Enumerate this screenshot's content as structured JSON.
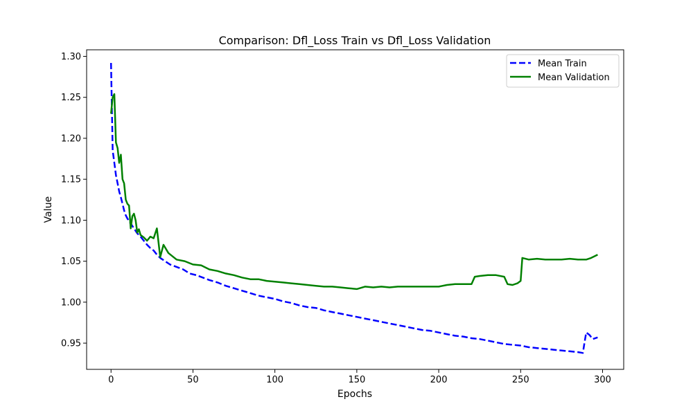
{
  "chart_data": {
    "type": "line",
    "title": "Comparison: Dfl_Loss Train vs Dfl_Loss Validation",
    "xlabel": "Epochs",
    "ylabel": "Value",
    "xlim": [
      -14.9,
      312.9
    ],
    "ylim": [
      0.918,
      1.308
    ],
    "xticks": [
      0,
      50,
      100,
      150,
      200,
      250,
      300
    ],
    "yticks": [
      0.95,
      1.0,
      1.05,
      1.1,
      1.15,
      1.2,
      1.25,
      1.3
    ],
    "xtick_labels": [
      "0",
      "50",
      "100",
      "150",
      "200",
      "250",
      "300"
    ],
    "ytick_labels": [
      "0.95",
      "1.00",
      "1.05",
      "1.10",
      "1.15",
      "1.20",
      "1.25",
      "1.30"
    ],
    "grid": false,
    "legend_position": "top-right",
    "series": [
      {
        "name": "Mean Train",
        "color": "#0000ff",
        "style": "dashed",
        "points": [
          [
            0,
            1.292
          ],
          [
            1,
            1.185
          ],
          [
            2,
            1.17
          ],
          [
            3,
            1.155
          ],
          [
            4,
            1.145
          ],
          [
            5,
            1.135
          ],
          [
            6,
            1.128
          ],
          [
            7,
            1.12
          ],
          [
            8,
            1.112
          ],
          [
            9,
            1.106
          ],
          [
            10,
            1.102
          ],
          [
            12,
            1.096
          ],
          [
            14,
            1.09
          ],
          [
            16,
            1.084
          ],
          [
            18,
            1.08
          ],
          [
            20,
            1.075
          ],
          [
            22,
            1.07
          ],
          [
            24,
            1.066
          ],
          [
            26,
            1.063
          ],
          [
            28,
            1.058
          ],
          [
            30,
            1.054
          ],
          [
            33,
            1.05
          ],
          [
            36,
            1.046
          ],
          [
            40,
            1.043
          ],
          [
            44,
            1.04
          ],
          [
            48,
            1.035
          ],
          [
            52,
            1.033
          ],
          [
            56,
            1.03
          ],
          [
            60,
            1.027
          ],
          [
            65,
            1.024
          ],
          [
            70,
            1.02
          ],
          [
            75,
            1.017
          ],
          [
            80,
            1.014
          ],
          [
            85,
            1.011
          ],
          [
            90,
            1.008
          ],
          [
            95,
            1.006
          ],
          [
            100,
            1.004
          ],
          [
            105,
            1.001
          ],
          [
            110,
            0.999
          ],
          [
            115,
            0.996
          ],
          [
            120,
            0.994
          ],
          [
            125,
            0.993
          ],
          [
            130,
            0.99
          ],
          [
            135,
            0.988
          ],
          [
            140,
            0.986
          ],
          [
            145,
            0.984
          ],
          [
            150,
            0.982
          ],
          [
            155,
            0.98
          ],
          [
            160,
            0.978
          ],
          [
            165,
            0.976
          ],
          [
            170,
            0.974
          ],
          [
            175,
            0.972
          ],
          [
            180,
            0.97
          ],
          [
            185,
            0.968
          ],
          [
            190,
            0.966
          ],
          [
            195,
            0.965
          ],
          [
            200,
            0.963
          ],
          [
            205,
            0.961
          ],
          [
            210,
            0.959
          ],
          [
            215,
            0.958
          ],
          [
            220,
            0.956
          ],
          [
            225,
            0.955
          ],
          [
            230,
            0.953
          ],
          [
            235,
            0.951
          ],
          [
            240,
            0.949
          ],
          [
            245,
            0.948
          ],
          [
            250,
            0.947
          ],
          [
            255,
            0.945
          ],
          [
            260,
            0.944
          ],
          [
            265,
            0.943
          ],
          [
            270,
            0.942
          ],
          [
            275,
            0.941
          ],
          [
            280,
            0.94
          ],
          [
            285,
            0.939
          ],
          [
            288,
            0.938
          ],
          [
            289,
            0.951
          ],
          [
            290,
            0.963
          ],
          [
            292,
            0.96
          ],
          [
            294,
            0.955
          ],
          [
            297,
            0.957
          ]
        ]
      },
      {
        "name": "Mean Validation",
        "color": "#008000",
        "style": "solid",
        "points": [
          [
            0,
            1.23
          ],
          [
            1,
            1.25
          ],
          [
            2,
            1.254
          ],
          [
            3,
            1.195
          ],
          [
            4,
            1.188
          ],
          [
            5,
            1.17
          ],
          [
            6,
            1.18
          ],
          [
            7,
            1.15
          ],
          [
            8,
            1.145
          ],
          [
            9,
            1.125
          ],
          [
            10,
            1.12
          ],
          [
            11,
            1.118
          ],
          [
            12,
            1.09
          ],
          [
            13,
            1.105
          ],
          [
            14,
            1.108
          ],
          [
            15,
            1.1
          ],
          [
            16,
            1.085
          ],
          [
            17,
            1.089
          ],
          [
            18,
            1.082
          ],
          [
            20,
            1.079
          ],
          [
            22,
            1.075
          ],
          [
            24,
            1.08
          ],
          [
            26,
            1.078
          ],
          [
            28,
            1.09
          ],
          [
            30,
            1.055
          ],
          [
            32,
            1.07
          ],
          [
            35,
            1.06
          ],
          [
            40,
            1.052
          ],
          [
            45,
            1.05
          ],
          [
            50,
            1.046
          ],
          [
            55,
            1.045
          ],
          [
            60,
            1.04
          ],
          [
            65,
            1.038
          ],
          [
            70,
            1.035
          ],
          [
            75,
            1.033
          ],
          [
            80,
            1.03
          ],
          [
            85,
            1.028
          ],
          [
            90,
            1.028
          ],
          [
            95,
            1.026
          ],
          [
            100,
            1.025
          ],
          [
            105,
            1.024
          ],
          [
            110,
            1.023
          ],
          [
            115,
            1.022
          ],
          [
            120,
            1.021
          ],
          [
            125,
            1.02
          ],
          [
            130,
            1.019
          ],
          [
            135,
            1.019
          ],
          [
            140,
            1.018
          ],
          [
            145,
            1.017
          ],
          [
            150,
            1.016
          ],
          [
            155,
            1.019
          ],
          [
            160,
            1.018
          ],
          [
            165,
            1.019
          ],
          [
            170,
            1.018
          ],
          [
            175,
            1.019
          ],
          [
            180,
            1.019
          ],
          [
            185,
            1.019
          ],
          [
            190,
            1.019
          ],
          [
            195,
            1.019
          ],
          [
            200,
            1.019
          ],
          [
            205,
            1.021
          ],
          [
            210,
            1.022
          ],
          [
            215,
            1.022
          ],
          [
            220,
            1.022
          ],
          [
            222,
            1.031
          ],
          [
            225,
            1.032
          ],
          [
            230,
            1.033
          ],
          [
            235,
            1.033
          ],
          [
            240,
            1.031
          ],
          [
            242,
            1.022
          ],
          [
            245,
            1.021
          ],
          [
            248,
            1.023
          ],
          [
            250,
            1.026
          ],
          [
            251,
            1.054
          ],
          [
            255,
            1.052
          ],
          [
            260,
            1.053
          ],
          [
            265,
            1.052
          ],
          [
            270,
            1.052
          ],
          [
            275,
            1.052
          ],
          [
            280,
            1.053
          ],
          [
            285,
            1.052
          ],
          [
            290,
            1.052
          ],
          [
            293,
            1.054
          ],
          [
            297,
            1.058
          ]
        ]
      }
    ]
  }
}
